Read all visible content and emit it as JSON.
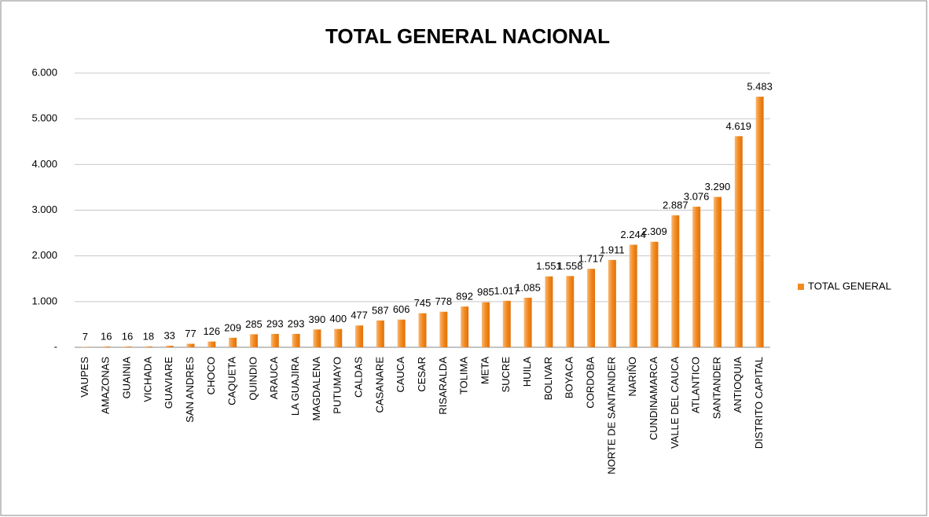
{
  "chart_data": {
    "type": "bar",
    "title": "TOTAL GENERAL NACIONAL",
    "categories": [
      "VAUPES",
      "AMAZONAS",
      "GUAINIA",
      "VICHADA",
      "GUAVIARE",
      "SAN ANDRES",
      "CHOCO",
      "CAQUETA",
      "QUINDIO",
      "ARAUCA",
      "LA GUAJIRA",
      "MAGDALENA",
      "PUTUMAYO",
      "CALDAS",
      "CASANARE",
      "CAUCA",
      "CESAR",
      "RISARALDA",
      "TOLIMA",
      "META",
      "SUCRE",
      "HUILA",
      "BOLIVAR",
      "BOYACA",
      "CORDOBA",
      "NORTE DE SANTANDER",
      "NARIÑO",
      "CUNDINAMARCA",
      "VALLE DEL CAUCA",
      "ATLANTICO",
      "SANTANDER",
      "ANTIOQUIA",
      "DISTRITO CAPITAL"
    ],
    "series": [
      {
        "name": "TOTAL GENERAL",
        "color": "#f28a1e",
        "values": [
          7,
          16,
          16,
          18,
          33,
          77,
          126,
          209,
          285,
          293,
          293,
          390,
          400,
          477,
          587,
          606,
          745,
          778,
          892,
          985,
          1017,
          1085,
          1551,
          1558,
          1717,
          1911,
          2244,
          2309,
          2887,
          3076,
          3290,
          4619,
          5483
        ],
        "value_labels": [
          "7",
          "16",
          "16",
          "18",
          "33",
          "77",
          "126",
          "209",
          "285",
          "293",
          "293",
          "390",
          "400",
          "477",
          "587",
          "606",
          "745",
          "778",
          "892",
          "985",
          "1.017",
          "1.085",
          "1.551",
          "1.558",
          "1.717",
          "1.911",
          "2.244",
          "2.309",
          "2.887",
          "3.076",
          "3.290",
          "4.619",
          "5.483"
        ]
      }
    ],
    "ylim": [
      0,
      6000
    ],
    "yticks": [
      {
        "value": 0,
        "label": "-"
      },
      {
        "value": 1000,
        "label": "1.000"
      },
      {
        "value": 2000,
        "label": "2.000"
      },
      {
        "value": 3000,
        "label": "3.000"
      },
      {
        "value": 4000,
        "label": "4.000"
      },
      {
        "value": 5000,
        "label": "5.000"
      },
      {
        "value": 6000,
        "label": "6.000"
      }
    ],
    "grid": true,
    "legend": "right"
  }
}
